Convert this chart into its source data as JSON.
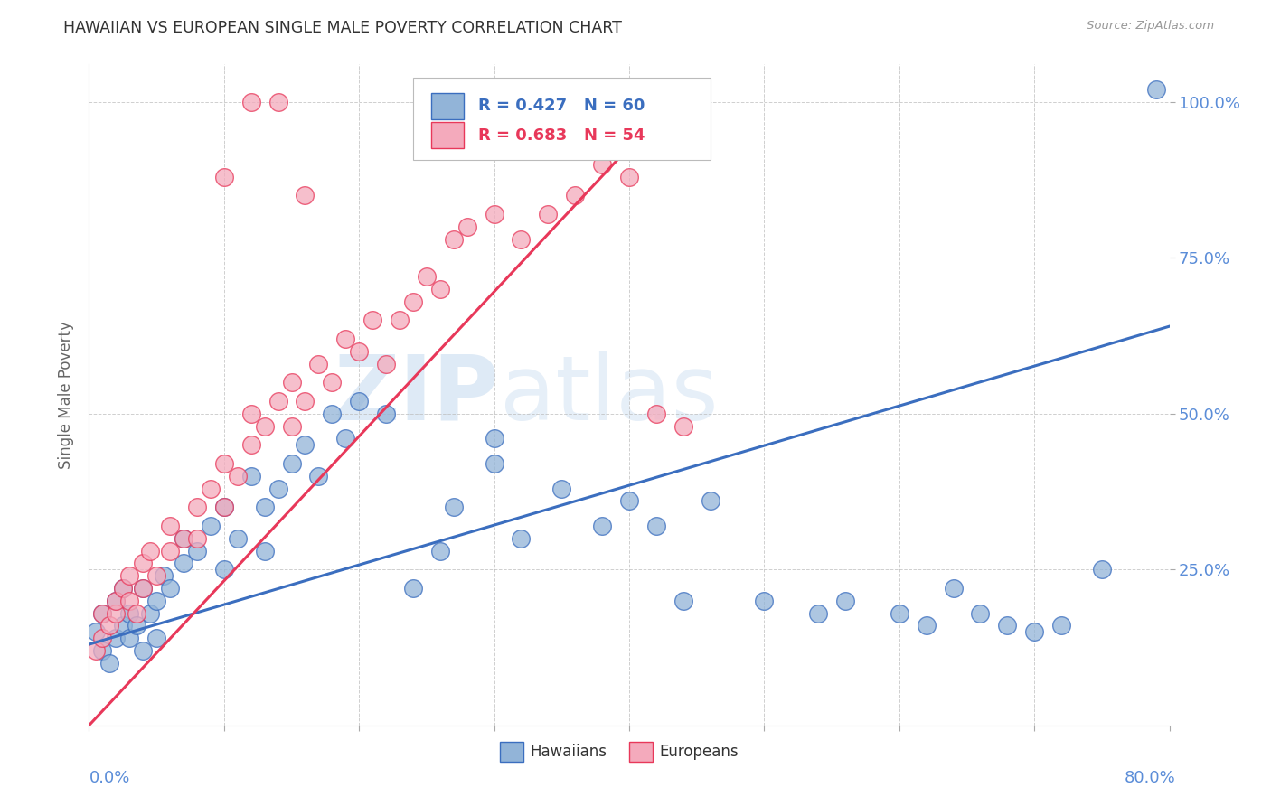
{
  "title": "HAWAIIAN VS EUROPEAN SINGLE MALE POVERTY CORRELATION CHART",
  "source": "Source: ZipAtlas.com",
  "ylabel": "Single Male Poverty",
  "ytick_labels": [
    "100.0%",
    "75.0%",
    "50.0%",
    "25.0%"
  ],
  "ytick_values": [
    1.0,
    0.75,
    0.5,
    0.25
  ],
  "legend_blue_label": "Hawaiians",
  "legend_pink_label": "Europeans",
  "r_blue": 0.427,
  "n_blue": 60,
  "r_pink": 0.683,
  "n_pink": 54,
  "blue_color": "#92B4D8",
  "pink_color": "#F4AABC",
  "blue_line_color": "#3B6EBF",
  "pink_line_color": "#E8385A",
  "background_color": "#FFFFFF",
  "grid_color": "#BBBBBB",
  "title_color": "#333333",
  "axis_label_color": "#5B8DD8",
  "hawaiians_x": [
    0.005,
    0.01,
    0.01,
    0.015,
    0.02,
    0.02,
    0.025,
    0.025,
    0.03,
    0.03,
    0.035,
    0.04,
    0.04,
    0.045,
    0.05,
    0.05,
    0.055,
    0.06,
    0.07,
    0.07,
    0.08,
    0.09,
    0.1,
    0.1,
    0.11,
    0.12,
    0.13,
    0.13,
    0.14,
    0.15,
    0.16,
    0.17,
    0.18,
    0.19,
    0.2,
    0.22,
    0.24,
    0.26,
    0.27,
    0.3,
    0.3,
    0.32,
    0.35,
    0.38,
    0.4,
    0.42,
    0.44,
    0.46,
    0.5,
    0.54,
    0.56,
    0.6,
    0.62,
    0.64,
    0.66,
    0.68,
    0.7,
    0.72,
    0.75,
    0.79
  ],
  "hawaiians_y": [
    0.15,
    0.12,
    0.18,
    0.1,
    0.14,
    0.2,
    0.16,
    0.22,
    0.14,
    0.18,
    0.16,
    0.12,
    0.22,
    0.18,
    0.14,
    0.2,
    0.24,
    0.22,
    0.26,
    0.3,
    0.28,
    0.32,
    0.25,
    0.35,
    0.3,
    0.4,
    0.28,
    0.35,
    0.38,
    0.42,
    0.45,
    0.4,
    0.5,
    0.46,
    0.52,
    0.5,
    0.22,
    0.28,
    0.35,
    0.42,
    0.46,
    0.3,
    0.38,
    0.32,
    0.36,
    0.32,
    0.2,
    0.36,
    0.2,
    0.18,
    0.2,
    0.18,
    0.16,
    0.22,
    0.18,
    0.16,
    0.15,
    0.16,
    0.25,
    1.02
  ],
  "europeans_x": [
    0.005,
    0.01,
    0.01,
    0.015,
    0.02,
    0.02,
    0.025,
    0.03,
    0.03,
    0.035,
    0.04,
    0.04,
    0.045,
    0.05,
    0.06,
    0.06,
    0.07,
    0.08,
    0.08,
    0.09,
    0.1,
    0.1,
    0.11,
    0.12,
    0.12,
    0.13,
    0.14,
    0.15,
    0.15,
    0.16,
    0.17,
    0.18,
    0.19,
    0.2,
    0.21,
    0.22,
    0.23,
    0.24,
    0.25,
    0.26,
    0.27,
    0.28,
    0.3,
    0.32,
    0.34,
    0.36,
    0.38,
    0.4,
    0.42,
    0.44,
    0.1,
    0.12,
    0.14,
    0.16
  ],
  "europeans_y": [
    0.12,
    0.14,
    0.18,
    0.16,
    0.18,
    0.2,
    0.22,
    0.2,
    0.24,
    0.18,
    0.22,
    0.26,
    0.28,
    0.24,
    0.28,
    0.32,
    0.3,
    0.35,
    0.3,
    0.38,
    0.35,
    0.42,
    0.4,
    0.45,
    0.5,
    0.48,
    0.52,
    0.55,
    0.48,
    0.52,
    0.58,
    0.55,
    0.62,
    0.6,
    0.65,
    0.58,
    0.65,
    0.68,
    0.72,
    0.7,
    0.78,
    0.8,
    0.82,
    0.78,
    0.82,
    0.85,
    0.9,
    0.88,
    0.5,
    0.48,
    0.88,
    1.0,
    1.0,
    0.85
  ],
  "blue_line_x": [
    0.0,
    0.8
  ],
  "blue_line_y": [
    0.13,
    0.64
  ],
  "pink_line_x": [
    0.0,
    0.44
  ],
  "pink_line_y": [
    0.0,
    1.02
  ],
  "xlim": [
    0.0,
    0.8
  ],
  "ylim": [
    0.0,
    1.06
  ]
}
